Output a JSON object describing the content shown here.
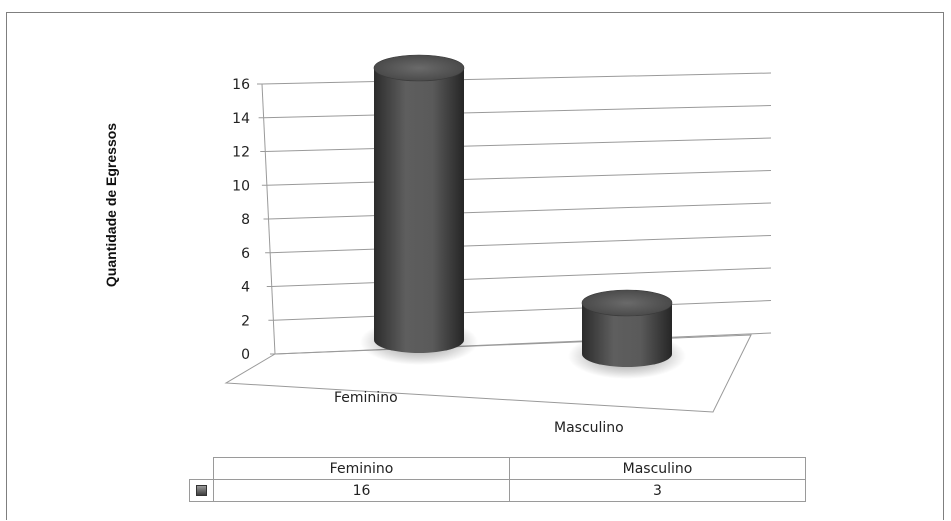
{
  "chart_data": {
    "type": "bar",
    "style": "3d-cylinder",
    "title": "",
    "xlabel": "",
    "ylabel": "Quantidade de Egressos",
    "categories": [
      "Feminino",
      "Masculino"
    ],
    "series": [
      {
        "name": "",
        "values": [
          16,
          3
        ]
      }
    ],
    "ylim": [
      0,
      16
    ],
    "yticks": [
      0,
      2,
      4,
      6,
      8,
      10,
      12,
      14,
      16
    ],
    "grid": true,
    "legend": "none",
    "data_table": true,
    "bar_color": "#555555"
  }
}
